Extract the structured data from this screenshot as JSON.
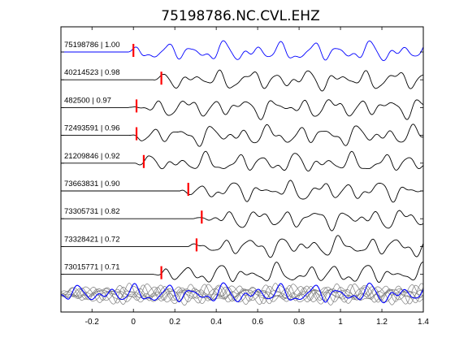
{
  "chart_data": {
    "type": "line",
    "title": "75198786.NC.CVL.EHZ",
    "xlim": [
      -0.35,
      1.4
    ],
    "x_ticks": [
      "-0.2",
      "0",
      "0.2",
      "0.4",
      "0.6",
      "0.8",
      "1",
      "1.2",
      "1.4"
    ],
    "x_tick_values": [
      -0.2,
      0,
      0.2,
      0.4,
      0.6,
      0.8,
      1.0,
      1.2,
      1.4
    ],
    "grid": false,
    "colors": {
      "reference": "#0000ff",
      "trace": "#000000",
      "stack": "#7f7f7f",
      "pick": "#ff0000"
    },
    "traces": [
      {
        "label": "75198786 | 1.00",
        "id": "75198786",
        "correlation": 1.0,
        "pick_time": 0.0,
        "reference": true
      },
      {
        "label": "40214523 | 0.98",
        "id": "40214523",
        "correlation": 0.98,
        "pick_time": 0.135
      },
      {
        "label": "482500 | 0.97",
        "id": "482500",
        "correlation": 0.97,
        "pick_time": 0.015
      },
      {
        "label": "72493591 | 0.96",
        "id": "72493591",
        "correlation": 0.96,
        "pick_time": 0.015
      },
      {
        "label": "21209846 | 0.92",
        "id": "21209846",
        "correlation": 0.92,
        "pick_time": 0.05
      },
      {
        "label": "73663831 | 0.90",
        "id": "73663831",
        "correlation": 0.9,
        "pick_time": 0.265
      },
      {
        "label": "73305731 | 0.82",
        "id": "73305731",
        "correlation": 0.82,
        "pick_time": 0.33
      },
      {
        "label": "73328421 | 0.72",
        "id": "73328421",
        "correlation": 0.72,
        "pick_time": 0.305
      },
      {
        "label": "73015771 | 0.71",
        "id": "73015771",
        "correlation": 0.71,
        "pick_time": 0.135
      }
    ]
  }
}
